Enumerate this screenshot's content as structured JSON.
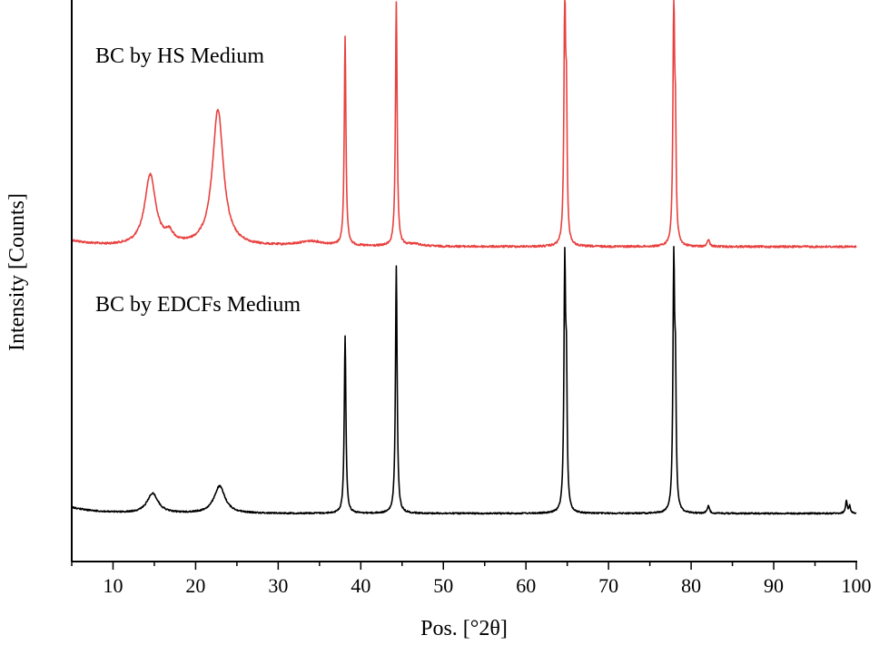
{
  "chart_data": {
    "type": "line",
    "title": "",
    "xlabel": "Pos. [°2θ]",
    "ylabel": "Intensity [Counts]",
    "xlim": [
      5,
      100
    ],
    "xticks": [
      10,
      20,
      30,
      40,
      50,
      60,
      70,
      80,
      90,
      100
    ],
    "y_tick_labels": false,
    "legend": "none (series labeled directly inside plot, upper-left of each trace)",
    "grid": false,
    "series": [
      {
        "name": "BC by HS Medium",
        "color": "#e8413f",
        "position": "upper",
        "baseline": 0.0,
        "peaks": [
          {
            "x": 14.5,
            "height": 0.29,
            "width": 0.8
          },
          {
            "x": 16.8,
            "height": 0.04,
            "width": 0.6
          },
          {
            "x": 22.7,
            "height": 0.56,
            "width": 0.8
          },
          {
            "x": 34.0,
            "height": 0.02,
            "width": 2.0
          },
          {
            "x": 38.1,
            "height": 0.86,
            "width": 0.12
          },
          {
            "x": 44.3,
            "height": 1.0,
            "width": 0.12
          },
          {
            "x": 46.5,
            "height": 0.01,
            "width": 1.0
          },
          {
            "x": 64.7,
            "height": 0.99,
            "width": 0.12
          },
          {
            "x": 64.9,
            "height": 0.5,
            "width": 0.1
          },
          {
            "x": 77.9,
            "height": 0.99,
            "width": 0.12
          },
          {
            "x": 78.1,
            "height": 0.4,
            "width": 0.1
          },
          {
            "x": 82.1,
            "height": 0.03,
            "width": 0.15
          }
        ]
      },
      {
        "name": "BC by EDCFs Medium",
        "color": "#000000",
        "position": "lower",
        "baseline": 0.0,
        "peaks": [
          {
            "x": 14.8,
            "height": 0.08,
            "width": 0.8
          },
          {
            "x": 22.9,
            "height": 0.11,
            "width": 0.8
          },
          {
            "x": 38.1,
            "height": 0.72,
            "width": 0.12
          },
          {
            "x": 44.3,
            "height": 1.0,
            "width": 0.12
          },
          {
            "x": 64.7,
            "height": 0.98,
            "width": 0.12
          },
          {
            "x": 64.9,
            "height": 0.48,
            "width": 0.1
          },
          {
            "x": 77.9,
            "height": 0.99,
            "width": 0.12
          },
          {
            "x": 78.1,
            "height": 0.47,
            "width": 0.1
          },
          {
            "x": 82.1,
            "height": 0.03,
            "width": 0.15
          },
          {
            "x": 98.8,
            "height": 0.05,
            "width": 0.12
          },
          {
            "x": 99.2,
            "height": 0.03,
            "width": 0.12
          }
        ]
      }
    ]
  }
}
